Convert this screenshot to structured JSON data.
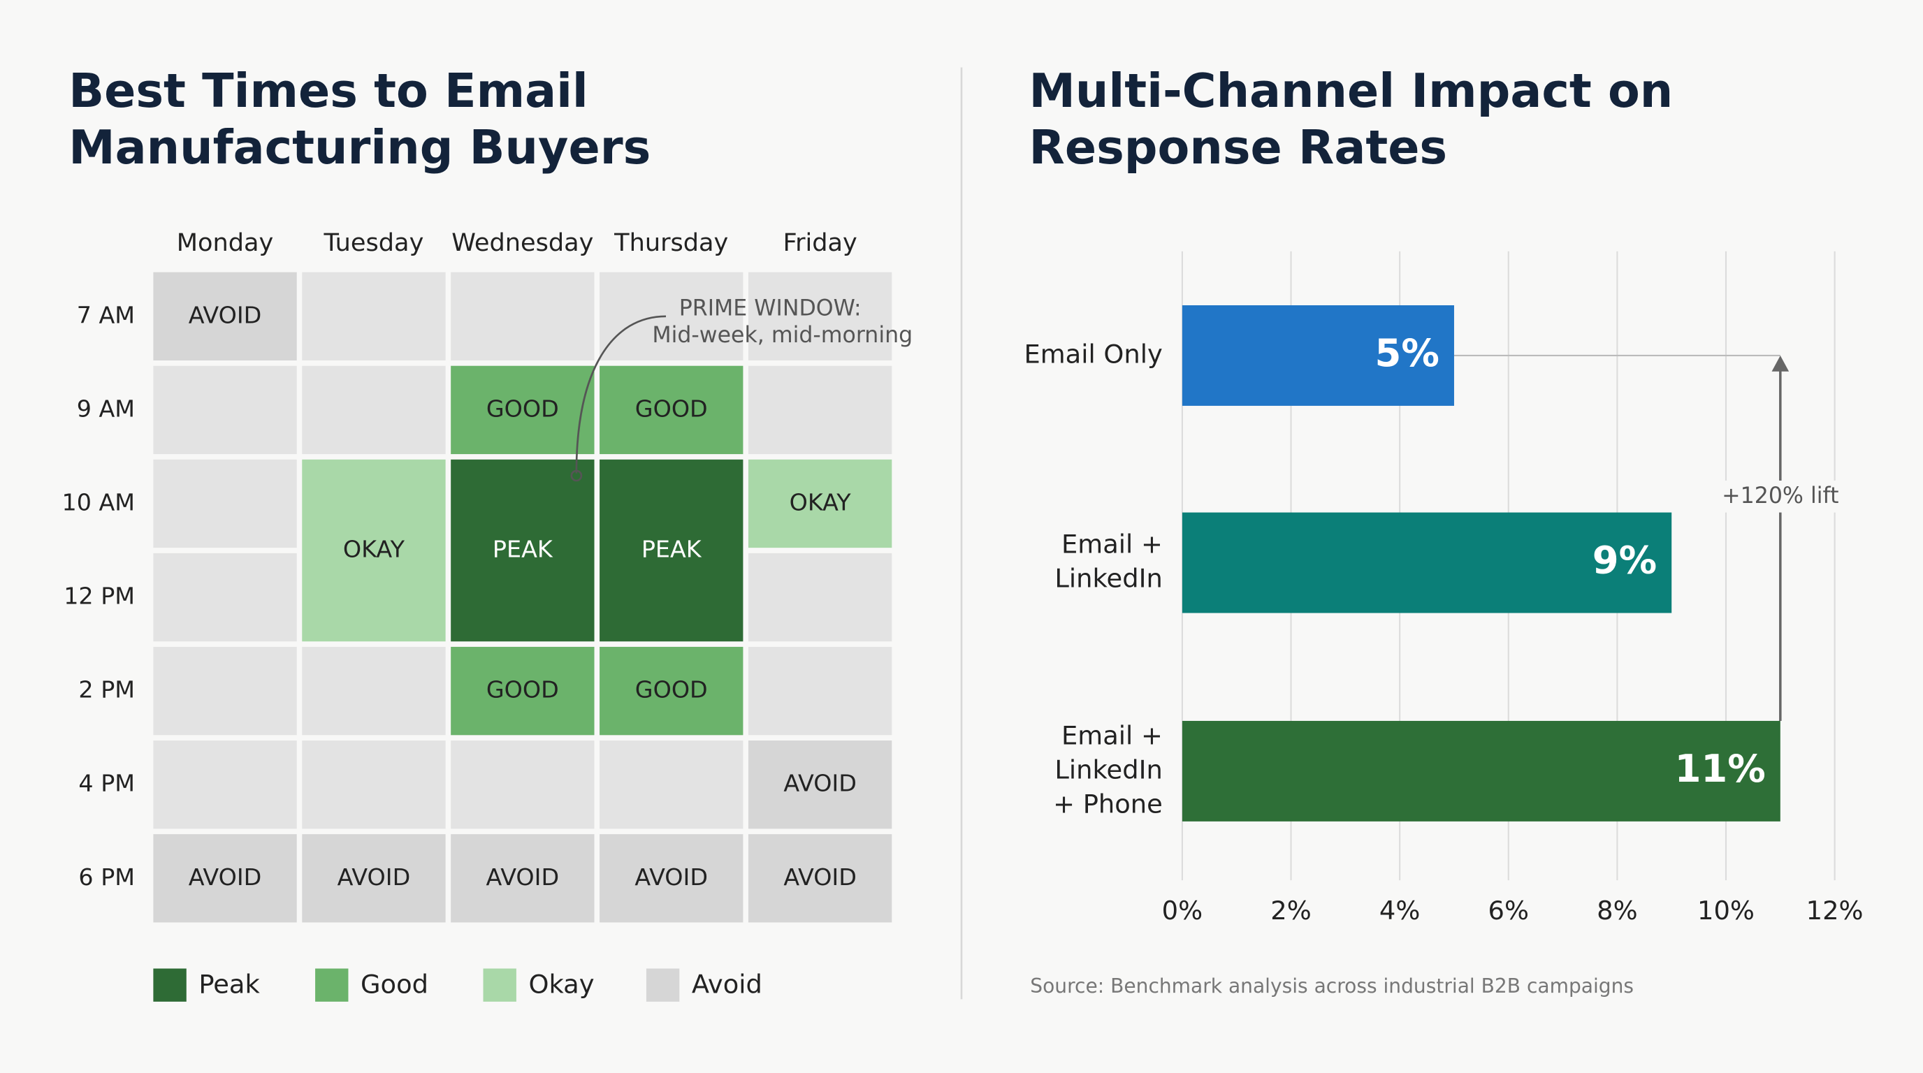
{
  "chart_data": [
    {
      "type": "heatmap",
      "title": [
        "Best Times to Email",
        "Manufacturing Buyers"
      ],
      "columns": [
        "Monday",
        "Tuesday",
        "Wednesday",
        "Thursday",
        "Friday"
      ],
      "rows": [
        "7 AM",
        "9 AM",
        "10 AM",
        "12 PM",
        "2 PM",
        "4 PM",
        "6 PM"
      ],
      "blocks": [
        {
          "day": "Monday",
          "times": [
            "7 AM"
          ],
          "label": "AVOID"
        },
        {
          "day": "Monday",
          "times": [
            "6 PM"
          ],
          "label": "AVOID"
        },
        {
          "day": "Tuesday",
          "times": [
            "10 AM",
            "12 PM"
          ],
          "label": "OKAY"
        },
        {
          "day": "Tuesday",
          "times": [
            "6 PM"
          ],
          "label": "AVOID"
        },
        {
          "day": "Wednesday",
          "times": [
            "9 AM"
          ],
          "label": "GOOD"
        },
        {
          "day": "Wednesday",
          "times": [
            "10 AM",
            "12 PM"
          ],
          "label": "PEAK"
        },
        {
          "day": "Wednesday",
          "times": [
            "2 PM"
          ],
          "label": "GOOD"
        },
        {
          "day": "Wednesday",
          "times": [
            "6 PM"
          ],
          "label": "AVOID"
        },
        {
          "day": "Thursday",
          "times": [
            "9 AM"
          ],
          "label": "GOOD"
        },
        {
          "day": "Thursday",
          "times": [
            "10 AM",
            "12 PM"
          ],
          "label": "PEAK"
        },
        {
          "day": "Thursday",
          "times": [
            "2 PM"
          ],
          "label": "GOOD"
        },
        {
          "day": "Thursday",
          "times": [
            "6 PM"
          ],
          "label": "AVOID"
        },
        {
          "day": "Friday",
          "times": [
            "10 AM"
          ],
          "label": "OKAY"
        },
        {
          "day": "Friday",
          "times": [
            "4 PM"
          ],
          "label": "AVOID"
        },
        {
          "day": "Friday",
          "times": [
            "6 PM"
          ],
          "label": "AVOID"
        }
      ],
      "annotation": [
        "PRIME WINDOW:",
        "Mid-week, mid-morning"
      ],
      "legend": [
        {
          "name": "Peak",
          "color": "#2e6b35"
        },
        {
          "name": "Good",
          "color": "#6bb36b"
        },
        {
          "name": "Okay",
          "color": "#a9d8a8"
        },
        {
          "name": "Avoid",
          "color": "#d6d6d6"
        }
      ]
    },
    {
      "type": "bar",
      "orientation": "horizontal",
      "title": [
        "Multi-Channel Impact on",
        "Response Rates"
      ],
      "categories": [
        [
          "Email Only"
        ],
        [
          "Email +",
          "LinkedIn"
        ],
        [
          "Email +",
          "LinkedIn",
          "+ Phone"
        ]
      ],
      "values": [
        5,
        9,
        11
      ],
      "value_labels": [
        "5%",
        "9%",
        "11%"
      ],
      "colors": [
        "#2176c7",
        "#0b7f78",
        "#2e6f37"
      ],
      "xlim": [
        0,
        12
      ],
      "xticks": [
        {
          "value": 0,
          "label": "0%"
        },
        {
          "value": 2,
          "label": "2%"
        },
        {
          "value": 4,
          "label": "4%"
        },
        {
          "value": 6,
          "label": "6%"
        },
        {
          "value": 8,
          "label": "8%"
        },
        {
          "value": 10,
          "label": "10%"
        },
        {
          "value": 12,
          "label": "12%"
        }
      ],
      "grid": true,
      "annotation": "+120% lift",
      "source": "Source: Benchmark analysis across industrial B2B campaigns"
    }
  ]
}
